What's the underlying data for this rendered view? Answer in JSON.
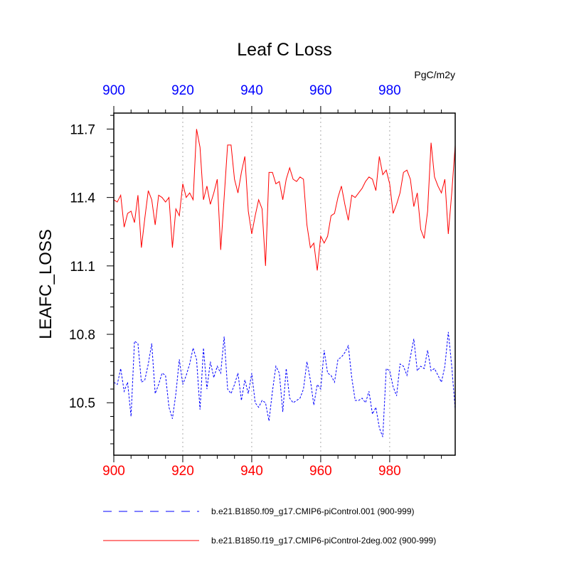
{
  "chart_data": {
    "type": "line",
    "title": "Leaf C Loss",
    "ylabel": "LEAFC_LOSS",
    "units": "PgC/m2y",
    "xlim": [
      900,
      999
    ],
    "ylim": [
      10.27,
      11.77
    ],
    "xticks": [
      900,
      920,
      940,
      960,
      980
    ],
    "xtick_labels": [
      "900",
      "920",
      "940",
      "960",
      "980"
    ],
    "yticks": [
      10.5,
      10.8,
      11.1,
      11.4,
      11.7
    ],
    "ytick_labels": [
      "10.5",
      "10.8",
      "11.1",
      "11.4",
      "11.7"
    ],
    "grid": "vertical dotted at major x ticks",
    "series": [
      {
        "name": "b.e21.B1850.f09_g17.CMIP6-piControl.001 (900-999)",
        "color": "#0000ff",
        "style": "dashed",
        "x_start": 900,
        "values": [
          10.59,
          10.58,
          10.65,
          10.55,
          10.59,
          10.44,
          10.77,
          10.76,
          10.59,
          10.6,
          10.67,
          10.76,
          10.54,
          10.58,
          10.63,
          10.62,
          10.48,
          10.43,
          10.54,
          10.69,
          10.58,
          10.62,
          10.67,
          10.74,
          10.69,
          10.47,
          10.74,
          10.56,
          10.68,
          10.61,
          10.66,
          10.63,
          10.79,
          10.56,
          10.54,
          10.58,
          10.63,
          10.51,
          10.6,
          10.54,
          10.63,
          10.5,
          10.48,
          10.51,
          10.5,
          10.42,
          10.55,
          10.66,
          10.63,
          10.46,
          10.65,
          10.52,
          10.5,
          10.51,
          10.52,
          10.56,
          10.68,
          10.6,
          10.49,
          10.58,
          10.56,
          10.73,
          10.63,
          10.62,
          10.59,
          10.69,
          10.7,
          10.72,
          10.75,
          10.61,
          10.51,
          10.51,
          10.52,
          10.5,
          10.55,
          10.45,
          10.48,
          10.39,
          10.35,
          10.65,
          10.64,
          10.57,
          10.53,
          10.67,
          10.66,
          10.62,
          10.7,
          10.78,
          10.64,
          10.66,
          10.65,
          10.73,
          10.64,
          10.65,
          10.62,
          10.59,
          10.66,
          10.81,
          10.66,
          10.47
        ]
      },
      {
        "name": "b.e21.B1850.f19_g17.CMIP6-piControl-2deg.002 (900-999)",
        "color": "#ff0000",
        "style": "solid",
        "x_start": 900,
        "values": [
          11.39,
          11.38,
          11.41,
          11.27,
          11.33,
          11.34,
          11.29,
          11.41,
          11.18,
          11.31,
          11.43,
          11.39,
          11.28,
          11.41,
          11.4,
          11.38,
          11.4,
          11.18,
          11.35,
          11.32,
          11.46,
          11.4,
          11.42,
          11.39,
          11.7,
          11.62,
          11.39,
          11.45,
          11.37,
          11.42,
          11.48,
          11.17,
          11.4,
          11.63,
          11.63,
          11.48,
          11.42,
          11.51,
          11.58,
          11.34,
          11.24,
          11.32,
          11.39,
          11.35,
          11.1,
          11.51,
          11.51,
          11.46,
          11.47,
          11.39,
          11.48,
          11.53,
          11.48,
          11.47,
          11.49,
          11.48,
          11.28,
          11.18,
          11.2,
          11.08,
          11.23,
          11.2,
          11.23,
          11.32,
          11.33,
          11.4,
          11.45,
          11.37,
          11.3,
          11.41,
          11.4,
          11.42,
          11.44,
          11.47,
          11.49,
          11.48,
          11.43,
          11.58,
          11.5,
          11.52,
          11.46,
          11.33,
          11.37,
          11.42,
          11.51,
          11.52,
          11.48,
          11.36,
          11.42,
          11.26,
          11.22,
          11.34,
          11.64,
          11.49,
          11.45,
          11.42,
          11.48,
          11.24,
          11.42,
          11.63
        ]
      }
    ]
  }
}
